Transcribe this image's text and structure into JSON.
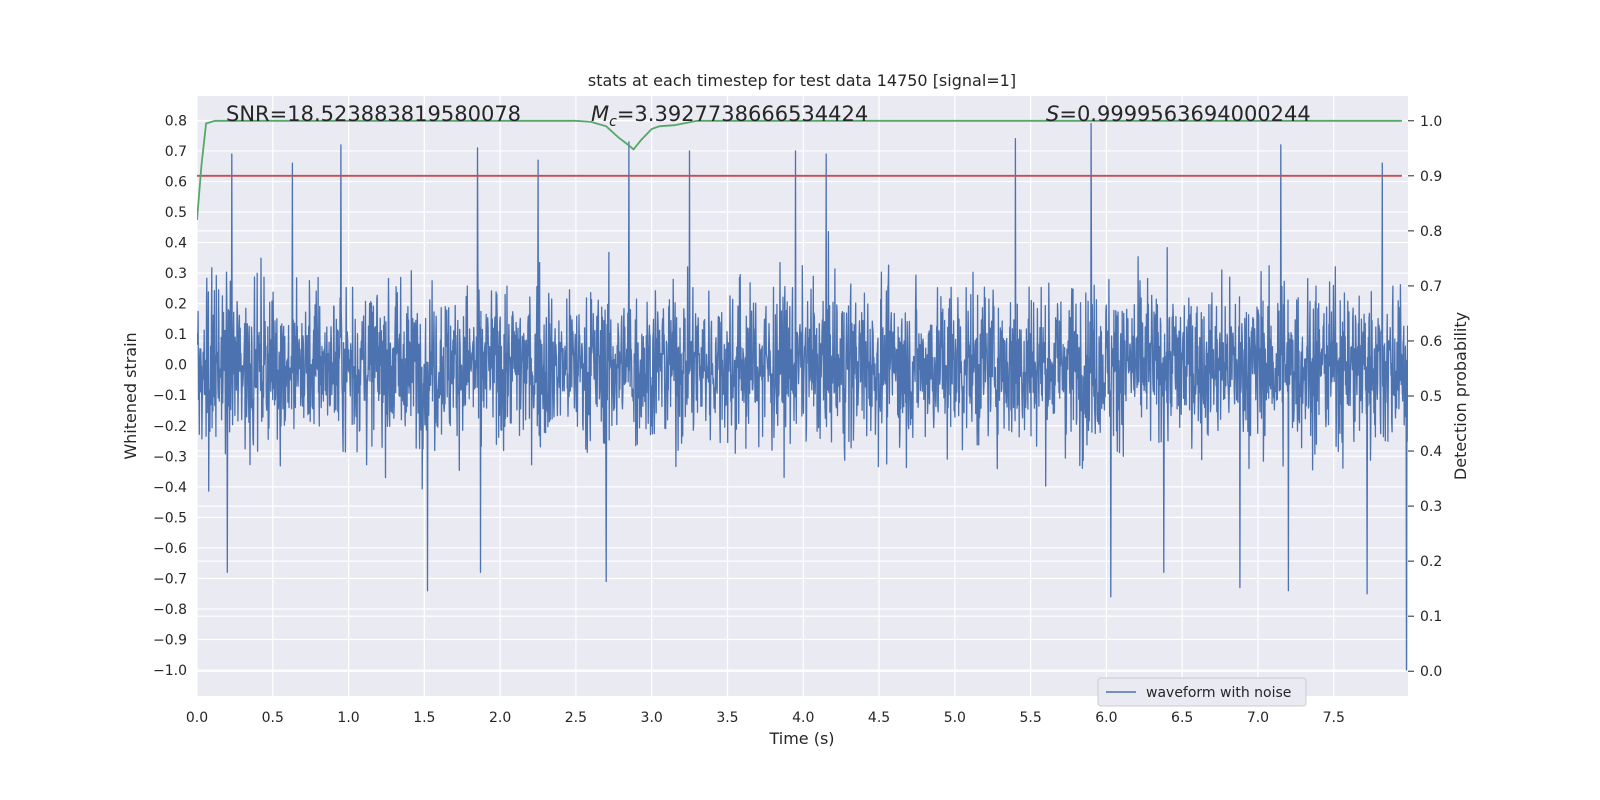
{
  "chart_data": {
    "type": "line",
    "title": "stats at each timestep for test data 14750 [signal=1]",
    "xlabel": "Time (s)",
    "ylabel": "Whitened strain",
    "y2label": "Detection probability",
    "xlim": [
      0.0,
      7.99
    ],
    "ylim": [
      -1.085,
      0.88
    ],
    "y2lim": [
      -0.045,
      1.045
    ],
    "x_ticks": [
      0.0,
      0.5,
      1.0,
      1.5,
      2.0,
      2.5,
      3.0,
      3.5,
      4.0,
      4.5,
      5.0,
      5.5,
      6.0,
      6.5,
      7.0,
      7.5
    ],
    "x_tick_labels": [
      "0.0",
      "0.5",
      "1.0",
      "1.5",
      "2.0",
      "2.5",
      "3.0",
      "3.5",
      "4.0",
      "4.5",
      "5.0",
      "5.5",
      "6.0",
      "6.5",
      "7.0",
      "7.5"
    ],
    "y_ticks": [
      0.8,
      0.7,
      0.6,
      0.5,
      0.4,
      0.3,
      0.2,
      0.1,
      0.0,
      -0.1,
      -0.2,
      -0.3,
      -0.4,
      -0.5,
      -0.6,
      -0.7,
      -0.8,
      -0.9,
      -1.0
    ],
    "y_tick_labels": [
      "0.8",
      "0.7",
      "0.6",
      "0.5",
      "0.4",
      "0.3",
      "0.2",
      "0.1",
      "0.0",
      "−0.1",
      "−0.2",
      "−0.3",
      "−0.4",
      "−0.5",
      "−0.6",
      "−0.7",
      "−0.8",
      "−0.9",
      "−1.0"
    ],
    "y2_ticks": [
      1.0,
      0.9,
      0.8,
      0.7,
      0.6,
      0.5,
      0.4,
      0.3,
      0.2,
      0.1,
      0.0
    ],
    "y2_tick_labels": [
      "1.0",
      "0.9",
      "0.8",
      "0.7",
      "0.6",
      "0.5",
      "0.4",
      "0.3",
      "0.2",
      "0.1",
      "0.0"
    ],
    "grid": true,
    "legend_placement": "lower-right",
    "annotations": [
      {
        "label": "SNR=18.523883819580078",
        "x": 0.19,
        "y": 0.815
      },
      {
        "label": "M_c=3.3927738666534424",
        "x": 2.6,
        "y": 0.815
      },
      {
        "label": "S=0.9999563694000244",
        "x": 5.6,
        "y": 0.815
      }
    ],
    "threshold": {
      "axis": "right",
      "value": 0.9
    },
    "series": [
      {
        "name": "waveform with noise",
        "axis": "left",
        "kind": "noise-strain",
        "duration": 7.99,
        "samples": 3200,
        "typical_envelope": [
          -0.3,
          0.27
        ],
        "spikes": [
          {
            "x": 0.23,
            "y": 0.69
          },
          {
            "x": 0.63,
            "y": 0.66
          },
          {
            "x": 0.95,
            "y": 0.72
          },
          {
            "x": 1.85,
            "y": 0.71
          },
          {
            "x": 2.25,
            "y": 0.67
          },
          {
            "x": 2.85,
            "y": 0.73
          },
          {
            "x": 3.25,
            "y": 0.7
          },
          {
            "x": 3.95,
            "y": 0.7
          },
          {
            "x": 4.15,
            "y": 0.69
          },
          {
            "x": 5.4,
            "y": 0.74
          },
          {
            "x": 5.9,
            "y": 0.79
          },
          {
            "x": 7.15,
            "y": 0.72
          },
          {
            "x": 7.82,
            "y": 0.66
          },
          {
            "x": 0.2,
            "y": -0.68
          },
          {
            "x": 1.52,
            "y": -0.74
          },
          {
            "x": 1.87,
            "y": -0.68
          },
          {
            "x": 2.7,
            "y": -0.71
          },
          {
            "x": 6.03,
            "y": -0.76
          },
          {
            "x": 6.38,
            "y": -0.68
          },
          {
            "x": 6.88,
            "y": -0.73
          },
          {
            "x": 7.2,
            "y": -0.74
          },
          {
            "x": 7.72,
            "y": -0.75
          },
          {
            "x": 7.98,
            "y": -1.0
          }
        ]
      },
      {
        "name": "",
        "axis": "right",
        "kind": "detection-probability",
        "color": "#55a868",
        "x": [
          0.0,
          0.03,
          0.06,
          0.12,
          0.3,
          1.0,
          2.0,
          2.5,
          2.6,
          2.7,
          2.78,
          2.85,
          2.88,
          2.93,
          3.0,
          3.05,
          3.15,
          3.3,
          4.0,
          5.0,
          6.0,
          7.0,
          7.95
        ],
        "values": [
          0.82,
          0.92,
          0.995,
          1.0,
          1.0,
          1.0,
          1.0,
          1.0,
          0.998,
          0.99,
          0.97,
          0.955,
          0.948,
          0.965,
          0.985,
          0.99,
          0.992,
          1.0,
          1.0,
          1.0,
          1.0,
          1.0,
          1.0
        ]
      },
      {
        "name": "",
        "axis": "right",
        "kind": "threshold",
        "color": "#c44e52",
        "x": [
          0.0,
          7.95
        ],
        "values": [
          0.9,
          0.9
        ]
      }
    ]
  },
  "colors": {
    "strain": "#4c72b0",
    "probability": "#55a868",
    "threshold": "#c44e52",
    "plot_background": "#eaeaf2",
    "grid": "#ffffff",
    "text": "#262626"
  },
  "legend": {
    "entries": [
      {
        "label": "waveform with noise",
        "color": "#4c72b0"
      }
    ]
  }
}
